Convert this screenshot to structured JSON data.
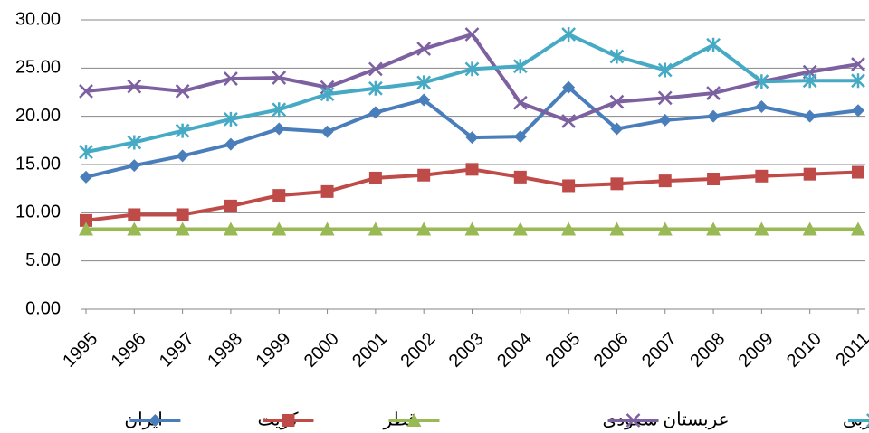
{
  "chart_data": {
    "type": "line",
    "categories": [
      "1995",
      "1996",
      "1997",
      "1998",
      "1999",
      "2000",
      "2001",
      "2002",
      "2003",
      "2004",
      "2005",
      "2006",
      "2007",
      "2008",
      "2009",
      "2010",
      "2011"
    ],
    "series": [
      {
        "name": "ایران",
        "color": "#4a7ebb",
        "marker": "diamond",
        "values": [
          13.7,
          14.9,
          15.9,
          17.1,
          18.7,
          18.4,
          20.4,
          21.7,
          17.8,
          17.9,
          23.0,
          18.7,
          19.6,
          20.0,
          21.0,
          20.0,
          20.6
        ]
      },
      {
        "name": "کویت",
        "color": "#be4b48",
        "marker": "square",
        "values": [
          9.2,
          9.8,
          9.8,
          10.7,
          11.8,
          12.2,
          13.6,
          13.9,
          14.5,
          13.7,
          12.8,
          13.0,
          13.3,
          13.5,
          13.8,
          14.0,
          14.2
        ]
      },
      {
        "name": "قطر",
        "color": "#98b954",
        "marker": "triangle",
        "values": [
          8.3,
          8.3,
          8.3,
          8.3,
          8.3,
          8.3,
          8.3,
          8.3,
          8.3,
          8.3,
          8.3,
          8.3,
          8.3,
          8.3,
          8.3,
          8.3,
          8.3
        ]
      },
      {
        "name": "عربستان سعودی",
        "color": "#7d60a0",
        "marker": "x",
        "values": [
          22.6,
          23.1,
          22.6,
          23.9,
          24.0,
          23.0,
          24.9,
          27.0,
          28.5,
          21.4,
          19.5,
          21.5,
          21.9,
          22.4,
          23.6,
          24.6,
          25.4
        ]
      },
      {
        "name": "امارات متحده عربی",
        "color": "#46aac5",
        "marker": "star",
        "values": [
          16.3,
          17.3,
          18.5,
          19.7,
          20.7,
          22.3,
          22.9,
          23.5,
          24.9,
          25.2,
          28.5,
          26.2,
          24.8,
          27.4,
          23.6,
          23.7,
          23.7
        ]
      }
    ],
    "ylim": [
      0,
      30
    ],
    "yticks": [
      {
        "value": 0,
        "label": "0.00"
      },
      {
        "value": 5,
        "label": "5.00"
      },
      {
        "value": 10,
        "label": "10.00"
      },
      {
        "value": 15,
        "label": "15.00"
      },
      {
        "value": 20,
        "label": "20.00"
      },
      {
        "value": 25,
        "label": "25.00"
      },
      {
        "value": 30,
        "label": "30.00"
      }
    ],
    "grid": true,
    "legend": "bottom"
  }
}
